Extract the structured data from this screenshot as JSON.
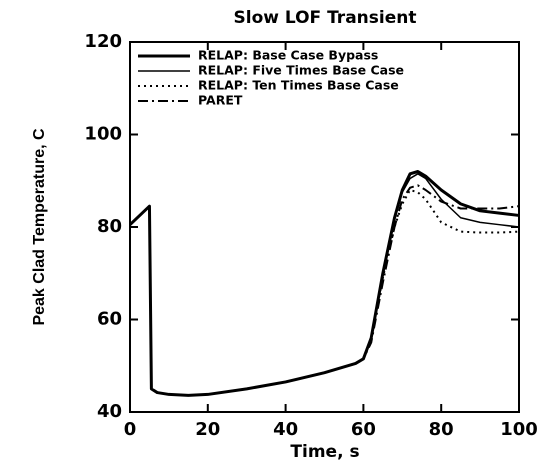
{
  "chart_data": {
    "type": "line",
    "title": "Slow LOF Transient",
    "x_label": "Time, s",
    "y_label": "Peak Clad Temperature, C",
    "x": [
      0,
      5,
      5.5,
      7,
      10,
      15,
      20,
      30,
      40,
      50,
      58,
      60,
      62,
      65,
      68,
      70,
      72,
      74,
      76,
      80,
      85,
      90,
      95,
      100
    ],
    "series": [
      {
        "name": "RELAP: Base Case Bypass",
        "color": "#000000",
        "width": 3,
        "dash": "none",
        "values": [
          80.5,
          84.5,
          45,
          44.2,
          43.8,
          43.6,
          43.8,
          45,
          46.5,
          48.5,
          50.5,
          51.5,
          56,
          70,
          82,
          88,
          91.5,
          92,
          91,
          88,
          85,
          83.5,
          83,
          82.5
        ]
      },
      {
        "name": "RELAP: Five Times Base Case",
        "color": "#000000",
        "width": 1.5,
        "dash": "none",
        "values": [
          80.5,
          84.5,
          45,
          44.2,
          43.8,
          43.6,
          43.8,
          45,
          46.5,
          48.5,
          50.5,
          51.5,
          56,
          70,
          82,
          87.5,
          90.5,
          91.5,
          90.5,
          86,
          82,
          81,
          80.5,
          80
        ]
      },
      {
        "name": "RELAP: Ten Times Base Case",
        "color": "#000000",
        "width": 2,
        "dash": "2 4",
        "values": [
          80.5,
          84.5,
          45,
          44.2,
          43.8,
          43.6,
          43.8,
          45,
          46.5,
          48.5,
          50.5,
          51.5,
          56,
          69,
          80,
          85,
          88,
          87.5,
          86,
          81,
          79,
          78.8,
          78.8,
          79
        ]
      },
      {
        "name": "PARET",
        "color": "#000000",
        "width": 2,
        "dash": "10 4 2 4",
        "values": [
          80.5,
          84.5,
          45,
          44.2,
          43.8,
          43.6,
          43.8,
          45,
          46.5,
          48.5,
          50.5,
          51.5,
          55,
          68,
          80,
          86,
          88.5,
          89,
          88,
          85.5,
          84,
          84,
          84,
          84.5
        ]
      }
    ],
    "xlim": [
      0,
      100
    ],
    "xticks": [
      0,
      20,
      40,
      60,
      80,
      100
    ],
    "ylim": [
      40,
      120
    ],
    "yticks": [
      40,
      60,
      80,
      100,
      120
    ],
    "legend": "upper left",
    "grid": false
  }
}
